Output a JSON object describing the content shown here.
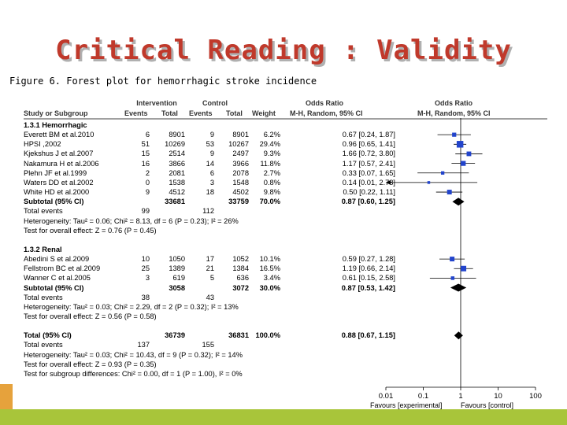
{
  "slide": {
    "title": "Critical Reading : Validity",
    "subtitle": "Figure 6. Forest plot for hemorrhagic stroke incidence"
  },
  "table": {
    "group_intervention": "Intervention",
    "group_control": "Control",
    "col_study": "Study or Subgroup",
    "col_events": "Events",
    "col_total": "Total",
    "col_events2": "Events",
    "col_total2": "Total",
    "col_weight": "Weight",
    "col_or_title": "Odds Ratio",
    "col_or_method": "M-H, Random, 95% CI",
    "plot_or_title": "Odds Ratio",
    "plot_or_method": "M-H, Random, 95% CI",
    "rows": [
      {
        "kind": "header",
        "name": "1.3.1 Hemorrhagic"
      },
      {
        "kind": "study",
        "name": "Everett BM et al.2010",
        "ee": "6",
        "et": "8901",
        "ce": "9",
        "ct": "8901",
        "w": "6.2%",
        "or": "0.67 [0.24, 1.87]"
      },
      {
        "kind": "study",
        "name": "HPSI ,2002",
        "ee": "51",
        "et": "10269",
        "ce": "53",
        "ct": "10267",
        "w": "29.4%",
        "or": "0.96 [0.65, 1.41]"
      },
      {
        "kind": "study",
        "name": "Kjekshus J et al.2007",
        "ee": "15",
        "et": "2514",
        "ce": "9",
        "ct": "2497",
        "w": "9.3%",
        "or": "1.66 [0.72, 3.80]"
      },
      {
        "kind": "study",
        "name": "Nakamura H et al.2006",
        "ee": "16",
        "et": "3866",
        "ce": "14",
        "ct": "3966",
        "w": "11.8%",
        "or": "1.17 [0.57, 2.41]"
      },
      {
        "kind": "study",
        "name": "Plehn JF et al.1999",
        "ee": "2",
        "et": "2081",
        "ce": "6",
        "ct": "2078",
        "w": "2.7%",
        "or": "0.33 [0.07, 1.65]"
      },
      {
        "kind": "study",
        "name": "Waters DD et al.2002",
        "ee": "0",
        "et": "1538",
        "ce": "3",
        "ct": "1548",
        "w": "0.8%",
        "or": "0.14 [0.01, 2.78]"
      },
      {
        "kind": "study",
        "name": "White HD et al.2000",
        "ee": "9",
        "et": "4512",
        "ce": "18",
        "ct": "4502",
        "w": "9.8%",
        "or": "0.50 [0.22, 1.11]"
      },
      {
        "kind": "subtotal",
        "name": "Subtotal (95% CI)",
        "et": "33681",
        "ct": "33759",
        "w": "70.0%",
        "or": "0.87 [0.60, 1.25]"
      },
      {
        "kind": "events",
        "name": "Total events",
        "ee": "99",
        "ce": "112"
      },
      {
        "kind": "note",
        "name": "Heterogeneity: Tau² = 0.06; Chi² = 8.13, df = 6 (P = 0.23); I² = 26%"
      },
      {
        "kind": "note",
        "name": "Test for overall effect: Z = 0.76 (P = 0.45)"
      },
      {
        "kind": "blank",
        "name": ""
      },
      {
        "kind": "header",
        "name": "1.3.2 Renal"
      },
      {
        "kind": "study",
        "name": "Abedini S et al.2009",
        "ee": "10",
        "et": "1050",
        "ce": "17",
        "ct": "1052",
        "w": "10.1%",
        "or": "0.59 [0.27, 1.28]"
      },
      {
        "kind": "study",
        "name": "Fellstrom BC et al.2009",
        "ee": "25",
        "et": "1389",
        "ce": "21",
        "ct": "1384",
        "w": "16.5%",
        "or": "1.19 [0.66, 2.14]"
      },
      {
        "kind": "study",
        "name": "Wanner C et al.2005",
        "ee": "3",
        "et": "619",
        "ce": "5",
        "ct": "636",
        "w": "3.4%",
        "or": "0.61 [0.15, 2.58]"
      },
      {
        "kind": "subtotal",
        "name": "Subtotal (95% CI)",
        "et": "3058",
        "ct": "3072",
        "w": "30.0%",
        "or": "0.87 [0.53, 1.42]"
      },
      {
        "kind": "events",
        "name": "Total events",
        "ee": "38",
        "ce": "43"
      },
      {
        "kind": "note",
        "name": "Heterogeneity: Tau² = 0.03; Chi² = 2.29, df = 2 (P = 0.32); I² = 13%"
      },
      {
        "kind": "note",
        "name": "Test for overall effect: Z = 0.56 (P = 0.58)"
      },
      {
        "kind": "blank",
        "name": ""
      },
      {
        "kind": "subtotal",
        "name": "Total (95% CI)",
        "et": "36739",
        "ct": "36831",
        "w": "100.0%",
        "or": "0.88 [0.67, 1.15]"
      },
      {
        "kind": "events",
        "name": "Total events",
        "ee": "137",
        "ce": "155"
      },
      {
        "kind": "note",
        "name": "Heterogeneity: Tau² = 0.03; Chi² = 10.43, df = 9 (P = 0.32); I² = 14%"
      },
      {
        "kind": "note",
        "name": "Test for overall effect: Z = 0.93 (P = 0.35)"
      },
      {
        "kind": "note",
        "name": "Test for subgroup differences: Chi² = 0.00, df = 1 (P = 1.00), I² = 0%"
      }
    ]
  },
  "chart_data": {
    "type": "forest",
    "x_scale": "log",
    "xlim": [
      0.01,
      100
    ],
    "x_ticks": [
      0.01,
      0.1,
      1,
      10,
      100
    ],
    "x_tick_labels": [
      "0.01",
      "0.1",
      "1",
      "10",
      "100"
    ],
    "favours_left": "Favours [experimental]",
    "favours_right": "Favours [control]",
    "studies": [
      {
        "name": "Everett BM et al.2010",
        "or": 0.67,
        "lo": 0.24,
        "hi": 1.87,
        "weight": 6.2
      },
      {
        "name": "HPSI ,2002",
        "or": 0.96,
        "lo": 0.65,
        "hi": 1.41,
        "weight": 29.4
      },
      {
        "name": "Kjekshus J et al.2007",
        "or": 1.66,
        "lo": 0.72,
        "hi": 3.8,
        "weight": 9.3
      },
      {
        "name": "Nakamura H et al.2006",
        "or": 1.17,
        "lo": 0.57,
        "hi": 2.41,
        "weight": 11.8
      },
      {
        "name": "Plehn JF et al.1999",
        "or": 0.33,
        "lo": 0.07,
        "hi": 1.65,
        "weight": 2.7
      },
      {
        "name": "Waters DD et al.2002",
        "or": 0.14,
        "lo": 0.01,
        "hi": 2.78,
        "weight": 0.8
      },
      {
        "name": "White HD et al.2000",
        "or": 0.5,
        "lo": 0.22,
        "hi": 1.11,
        "weight": 9.8
      },
      {
        "name": "Abedini S et al.2009",
        "or": 0.59,
        "lo": 0.27,
        "hi": 1.28,
        "weight": 10.1
      },
      {
        "name": "Fellstrom BC et al.2009",
        "or": 1.19,
        "lo": 0.66,
        "hi": 2.14,
        "weight": 16.5
      },
      {
        "name": "Wanner C et al.2005",
        "or": 0.61,
        "lo": 0.15,
        "hi": 2.58,
        "weight": 3.4
      }
    ],
    "pooled": [
      {
        "name": "Subtotal (95% CI) Hemorrhagic",
        "or": 0.87,
        "lo": 0.6,
        "hi": 1.25
      },
      {
        "name": "Subtotal (95% CI) Renal",
        "or": 0.87,
        "lo": 0.53,
        "hi": 1.42
      },
      {
        "name": "Total (95% CI)",
        "or": 0.88,
        "lo": 0.67,
        "hi": 1.15
      }
    ]
  },
  "colors": {
    "title": "#c0392b",
    "marker": "#2244cc",
    "diamond": "#000000",
    "bottom_bar": "#a8c53a",
    "bottom_deco": "#e6a23c"
  }
}
